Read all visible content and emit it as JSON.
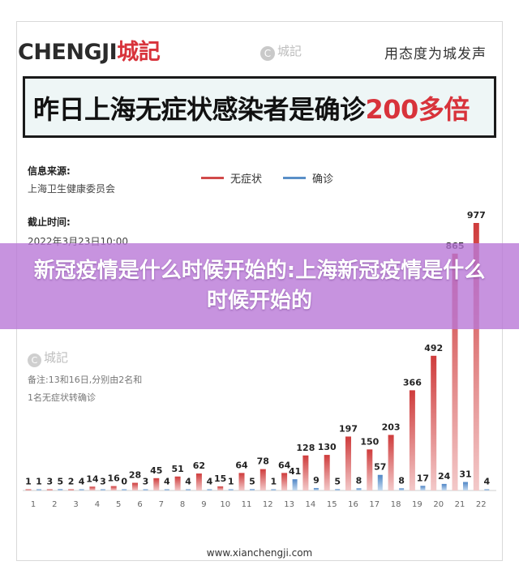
{
  "brand": {
    "logo_latin": "CHENGJI",
    "logo_cn": "城記",
    "watermark": "城記",
    "watermark_symbol": "C",
    "slogan": "用态度为城发声"
  },
  "title": {
    "main": "昨日上海无症状感染者是确诊",
    "highlight": "200多倍"
  },
  "meta": {
    "source_label": "信息来源:",
    "source_value": "上海卫生健康委员会",
    "time_label": "截止时间:",
    "time_value": "2022年3月23日10:00"
  },
  "note": {
    "watermark": "城記",
    "watermark_symbol": "C",
    "line1": "备注:13和16日,分别由2名和",
    "line2": "1名无症状转确诊"
  },
  "banner": {
    "text": "新冠疫情是什么时候开始的:上海新冠疫情是什么时候开始的"
  },
  "footer": {
    "url": "www.xianchengji.com"
  },
  "colors": {
    "asymptomatic": "#d14a4a",
    "confirmed": "#5a8fc8",
    "accent_red": "#d8333b",
    "banner": "#b978d7"
  },
  "chart_data": {
    "type": "bar",
    "categories": [
      "1",
      "2",
      "3",
      "4",
      "5",
      "6",
      "7",
      "8",
      "9",
      "10",
      "11",
      "12",
      "13",
      "14",
      "15",
      "16",
      "17",
      "18",
      "19",
      "20",
      "21",
      "22"
    ],
    "series": [
      {
        "name": "无症状",
        "values": [
          1,
          3,
          2,
          14,
          16,
          28,
          45,
          51,
          62,
          15,
          64,
          78,
          64,
          128,
          130,
          197,
          150,
          203,
          366,
          492,
          865,
          977
        ]
      },
      {
        "name": "确诊",
        "values": [
          1,
          5,
          4,
          3,
          0,
          3,
          4,
          4,
          4,
          1,
          5,
          1,
          41,
          9,
          5,
          8,
          57,
          8,
          17,
          24,
          31,
          4
        ]
      }
    ],
    "ylim": [
      0,
      977
    ]
  }
}
